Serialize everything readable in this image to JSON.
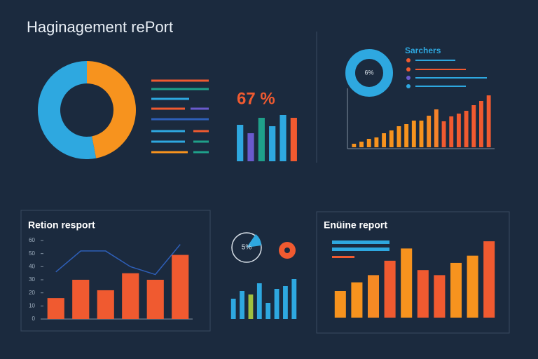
{
  "header": {
    "title": "Haginagement rePort"
  },
  "chart_data": [
    {
      "type": "donut",
      "values": [
        47,
        53
      ],
      "colors": [
        "#f7931e",
        "#2ea8e0"
      ]
    },
    {
      "type": "bar",
      "title": "67 %",
      "values": [
        52,
        40,
        62,
        50,
        66,
        62
      ],
      "colors": [
        "#2ea8e0",
        "#6a5acd",
        "#1fa08a",
        "#2ea8e0",
        "#2ea8e0",
        "#f05a30"
      ],
      "ylim": [
        0,
        80
      ]
    },
    {
      "type": "bar",
      "title": "Sarchers",
      "annotation": "6%",
      "values": [
        5,
        8,
        12,
        14,
        20,
        24,
        30,
        33,
        38,
        38,
        45,
        54,
        37,
        44,
        48,
        52,
        60,
        66,
        74
      ],
      "colors": [
        "#f7931e",
        "#f7931e",
        "#f7931e",
        "#f7931e",
        "#f7931e",
        "#f7931e",
        "#f7931e",
        "#f7931e",
        "#f7931e",
        "#f7931e",
        "#f58a24",
        "#f5822a",
        "#f05a30",
        "#f05a30",
        "#f05a30",
        "#f05a30",
        "#f05a30",
        "#f05a30",
        "#f05a30"
      ],
      "ylim": [
        0,
        80
      ]
    },
    {
      "type": "combo",
      "title": "Retion resport",
      "ylim": [
        0,
        60
      ],
      "yticks": [
        0,
        10,
        20,
        30,
        40,
        50,
        60
      ],
      "series": [
        {
          "type": "bar",
          "color": "#f05a30",
          "values": [
            16,
            30,
            22,
            35,
            30,
            49
          ]
        },
        {
          "type": "line",
          "color": "#2e5fb8",
          "values": [
            36,
            52,
            52,
            40,
            34,
            57
          ]
        }
      ]
    },
    {
      "type": "bar",
      "annotation": "5%",
      "values": [
        29,
        40,
        35,
        51,
        23,
        43,
        47,
        57
      ],
      "colors": [
        "#2ea8e0",
        "#2ea8e0",
        "#a0c040",
        "#2ea8e0",
        "#2ea8e0",
        "#2ea8e0",
        "#2ea8e0",
        "#2ea8e0"
      ],
      "ylim": [
        0,
        60
      ]
    },
    {
      "type": "bar",
      "title": "Enüine report",
      "values": [
        37,
        49,
        59,
        79,
        96,
        66,
        59,
        76,
        86,
        106
      ],
      "colors": [
        "#f7931e",
        "#f7931e",
        "#f58a24",
        "#f05a30",
        "#f7931e",
        "#f05a30",
        "#f05a30",
        "#f7931e",
        "#f7931e",
        "#f05a30"
      ],
      "ylim": [
        0,
        110
      ]
    }
  ]
}
